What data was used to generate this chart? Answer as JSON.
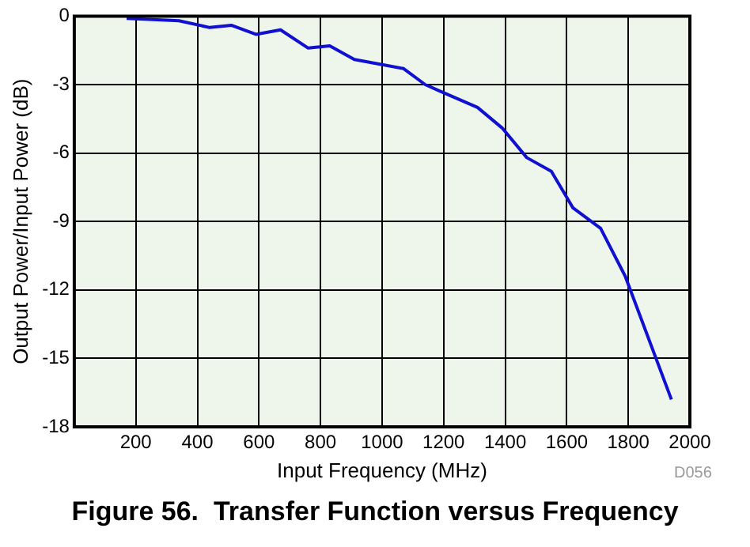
{
  "chart_data": {
    "type": "line",
    "title": "Figure 56.  Transfer Function versus Frequency",
    "xlabel": "Input Frequency (MHz)",
    "ylabel": "Output Power/Input Power (dB)",
    "annotations": [
      "D056"
    ],
    "x": [
      170,
      340,
      440,
      510,
      590,
      670,
      760,
      830,
      910,
      990,
      1070,
      1140,
      1190,
      1310,
      1390,
      1470,
      1550,
      1620,
      1710,
      1790,
      1940
    ],
    "series": [
      {
        "color": "#1010d0",
        "values": [
          -0.1,
          -0.2,
          -0.5,
          -0.4,
          -0.8,
          -0.6,
          -1.4,
          -1.3,
          -1.9,
          -2.1,
          -2.3,
          -3.0,
          -3.3,
          -4.0,
          -4.9,
          -6.2,
          -6.8,
          -8.4,
          -9.3,
          -11.4,
          -16.8
        ]
      }
    ],
    "xlim": [
      0,
      2000
    ],
    "xticks": [
      200,
      400,
      600,
      800,
      1000,
      1200,
      1400,
      1600,
      1800,
      2000
    ],
    "ylim": [
      -18,
      0
    ],
    "yticks": [
      -18,
      -15,
      -12,
      -9,
      -6,
      -3,
      0
    ],
    "grid": true,
    "marker": "none",
    "line_style": "solid"
  }
}
